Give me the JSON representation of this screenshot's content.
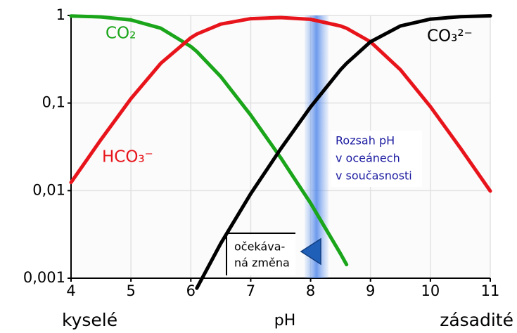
{
  "chart_data": {
    "type": "line",
    "x": [
      4,
      4.5,
      5,
      5.5,
      6,
      6.1,
      6.5,
      7,
      7.5,
      8,
      8.5,
      8.6,
      9,
      9.5,
      10,
      10.5,
      11
    ],
    "series": [
      {
        "name": "CO₂",
        "color": "#1aa51a",
        "values": [
          0.988,
          0.962,
          0.888,
          0.715,
          0.442,
          0.387,
          0.2,
          0.0729,
          0.0238,
          0.00717,
          0.0019,
          0.00143,
          null,
          null,
          null,
          null,
          null
        ]
      },
      {
        "name": "HCO₃⁻",
        "color": "#e8141b",
        "values": [
          0.0124,
          0.0383,
          0.112,
          0.285,
          0.557,
          0.613,
          0.797,
          0.918,
          0.946,
          0.903,
          0.758,
          0.714,
          0.5,
          0.24,
          0.0909,
          0.0307,
          0.0099
        ]
      },
      {
        "name": "CO₃²⁻",
        "color": "#000000",
        "values": [
          null,
          null,
          null,
          null,
          null,
          0.00077,
          0.0025,
          0.0092,
          0.0299,
          0.0903,
          0.24,
          0.284,
          0.5,
          0.76,
          0.909,
          0.969,
          0.99
        ]
      }
    ],
    "xlim": [
      4,
      11
    ],
    "xticks": [
      4,
      5,
      6,
      7,
      8,
      9,
      10,
      11
    ],
    "ylim": [
      0.001,
      1
    ],
    "yticks": [
      {
        "value": 0.001,
        "label": "0,001"
      },
      {
        "value": 0.01,
        "label": "0,01"
      },
      {
        "value": 0.1,
        "label": "0,1"
      },
      1
    ],
    "log_y": true,
    "grid": true,
    "xlabel": "pH",
    "x_left_label": "kyselé",
    "x_right_label": "zásadité",
    "ocean_band": [
      7.9,
      8.3
    ],
    "annotations": {
      "ocean_range": [
        "Rozsah pH",
        "v oceánech",
        "v současnosti"
      ],
      "expected_change": [
        "očekáva-",
        "ná změna"
      ]
    }
  }
}
